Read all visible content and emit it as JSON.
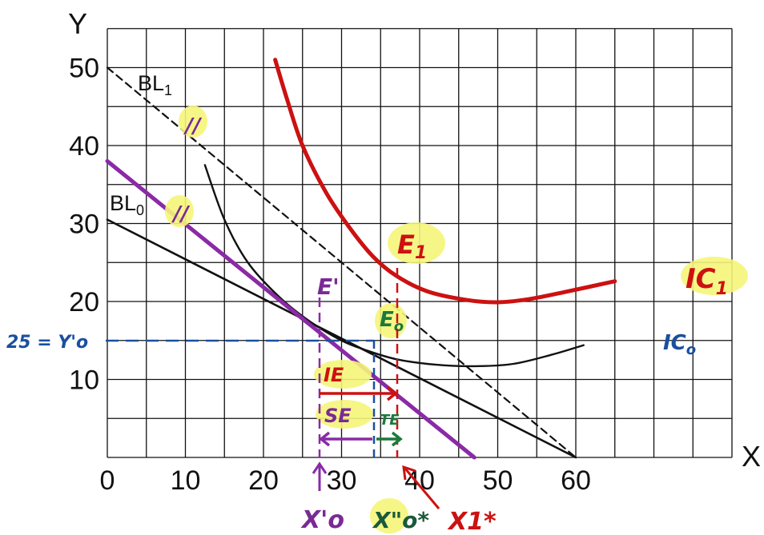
{
  "chart_data": {
    "type": "line",
    "xlabel": "X",
    "ylabel": "Y",
    "xlim": [
      0,
      80
    ],
    "ylim": [
      0,
      55
    ],
    "x_ticks": [
      0,
      10,
      20,
      30,
      40,
      50,
      60
    ],
    "y_ticks": [
      10,
      20,
      30,
      40,
      50
    ],
    "grid": true,
    "series": [
      {
        "name": "BL1",
        "label_main": "BL",
        "label_sub": "1",
        "style": "dashed",
        "color": "#111111",
        "points": [
          [
            0,
            50
          ],
          [
            60,
            0
          ]
        ]
      },
      {
        "name": "BL0",
        "label_main": "BL",
        "label_sub": "0",
        "style": "solid",
        "color": "#111111",
        "points": [
          [
            0,
            30.5
          ],
          [
            60,
            0
          ]
        ]
      },
      {
        "name": "IC0",
        "style": "solid",
        "color": "#111111",
        "points": [
          [
            12.5,
            37.5
          ],
          [
            15,
            30.5
          ],
          [
            18,
            25
          ],
          [
            22,
            20.6
          ],
          [
            26,
            17.4
          ],
          [
            30,
            15
          ],
          [
            33,
            13.8
          ],
          [
            37,
            12.6
          ],
          [
            42,
            11.9
          ],
          [
            47,
            11.7
          ],
          [
            52,
            12
          ],
          [
            57,
            13.2
          ],
          [
            61,
            14.4
          ]
        ]
      },
      {
        "name": "IC1",
        "style": "solid",
        "color": "#cc1111",
        "points": [
          [
            21.5,
            51
          ],
          [
            23,
            46
          ],
          [
            25,
            40
          ],
          [
            28,
            34
          ],
          [
            31,
            29.5
          ],
          [
            34,
            25.8
          ],
          [
            37,
            23.3
          ],
          [
            41,
            21.3
          ],
          [
            46,
            20.2
          ],
          [
            50,
            19.9
          ],
          [
            54,
            20.3
          ],
          [
            59,
            21.3
          ],
          [
            65,
            22.6
          ]
        ]
      },
      {
        "name": "Budget-line",
        "style": "solid",
        "color": "#8a2aa6",
        "points": [
          [
            0,
            38
          ],
          [
            47,
            0
          ]
        ]
      }
    ],
    "points": [
      {
        "name": "E'",
        "x": 26.5,
        "y": 19.2
      },
      {
        "name": "E0",
        "x": 33.5,
        "y": 15
      },
      {
        "name": "E1",
        "x": 35.5,
        "y": 24.5
      }
    ],
    "annotations": {
      "bl1_label": "BL",
      "bl1_sub": "1",
      "bl0_label": "BL",
      "bl0_sub": "0",
      "tick_mark": "//",
      "e1_label": "E",
      "e1_sub": "1",
      "e0_label": "E",
      "e0_sub": "o",
      "eprime_label": "E'",
      "ic1_label": "IC",
      "ic1_sub": "1",
      "ic0_label": "IC",
      "ic0_sub": "o",
      "y0_label": "25 = Y'o",
      "ie_label": "IE",
      "se_label": "SE",
      "te_label": "TE",
      "x0prime_label": "X'o",
      "x0star_label": "X\"o*",
      "x1star_label": "X1*"
    }
  }
}
